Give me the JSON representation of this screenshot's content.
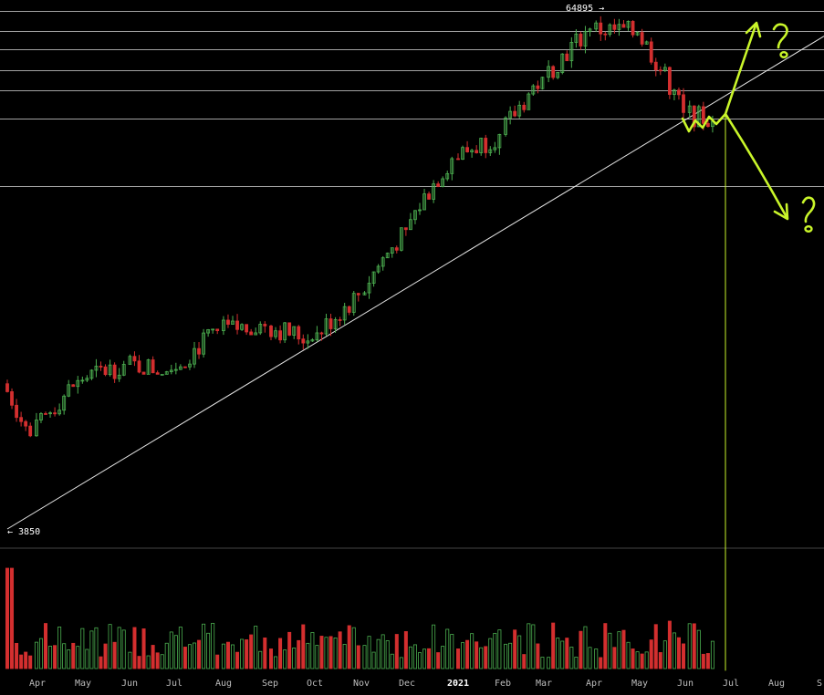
{
  "chart_data": {
    "type": "candlestick",
    "x_ticks": [
      "Apr",
      "May",
      "Jun",
      "Jul",
      "Aug",
      "Sep",
      "Oct",
      "Nov",
      "Dec",
      "2021",
      "Feb",
      "Mar",
      "Apr",
      "May",
      "Jun",
      "Jul",
      "Aug",
      "S"
    ],
    "annotations": {
      "high_label": "64895 →",
      "low_label": "← 3850"
    },
    "horizontal_levels": [
      64895,
      58300,
      52700,
      47000,
      42000,
      36000,
      25000
    ],
    "trendline": {
      "start": {
        "date": "2020-03-13",
        "price": 3850
      },
      "through": {
        "date": "2021-06-20",
        "price": 40000
      }
    },
    "projection": {
      "pivot_date": "2021-06-20",
      "up_target_label": "?",
      "down_target_label": "?"
    },
    "ohlc_monthly_approx": [
      {
        "month": "2020-03",
        "open": 8500,
        "close": 6400,
        "low": 3850,
        "high": 9100
      },
      {
        "month": "2020-04",
        "open": 6400,
        "close": 8650,
        "low": 6200,
        "high": 9450
      },
      {
        "month": "2020-05",
        "open": 8650,
        "close": 9450,
        "low": 8150,
        "high": 10050
      },
      {
        "month": "2020-06",
        "open": 9450,
        "close": 9150,
        "low": 8950,
        "high": 10400
      },
      {
        "month": "2020-07",
        "open": 9150,
        "close": 11350,
        "low": 8950,
        "high": 11450
      },
      {
        "month": "2020-08",
        "open": 11350,
        "close": 11650,
        "low": 11100,
        "high": 12450
      },
      {
        "month": "2020-09",
        "open": 11650,
        "close": 10800,
        "low": 9950,
        "high": 12050
      },
      {
        "month": "2020-10",
        "open": 10800,
        "close": 13800,
        "low": 10450,
        "high": 14100
      },
      {
        "month": "2020-11",
        "open": 13800,
        "close": 19700,
        "low": 13350,
        "high": 19900
      },
      {
        "month": "2020-12",
        "open": 19700,
        "close": 29000,
        "low": 18300,
        "high": 29300
      },
      {
        "month": "2021-01",
        "open": 29000,
        "close": 33100,
        "low": 28800,
        "high": 42000
      },
      {
        "month": "2021-02",
        "open": 33100,
        "close": 45200,
        "low": 32300,
        "high": 58300
      },
      {
        "month": "2021-03",
        "open": 45200,
        "close": 58800,
        "low": 43000,
        "high": 61700
      },
      {
        "month": "2021-04",
        "open": 58800,
        "close": 57700,
        "low": 47000,
        "high": 64895
      },
      {
        "month": "2021-05",
        "open": 57700,
        "close": 37300,
        "low": 30000,
        "high": 59500
      },
      {
        "month": "2021-06",
        "open": 37300,
        "close": 35500,
        "low": 31000,
        "high": 41300
      }
    ],
    "volume": {
      "label": "",
      "peak_near": "2020-03",
      "secondary_peak_near": "2021-05"
    }
  },
  "colors": {
    "up": "#4caf50",
    "down": "#d32f2f",
    "background": "#000000",
    "drawing": "#c9f52a",
    "levels": "#d8d8d8"
  }
}
